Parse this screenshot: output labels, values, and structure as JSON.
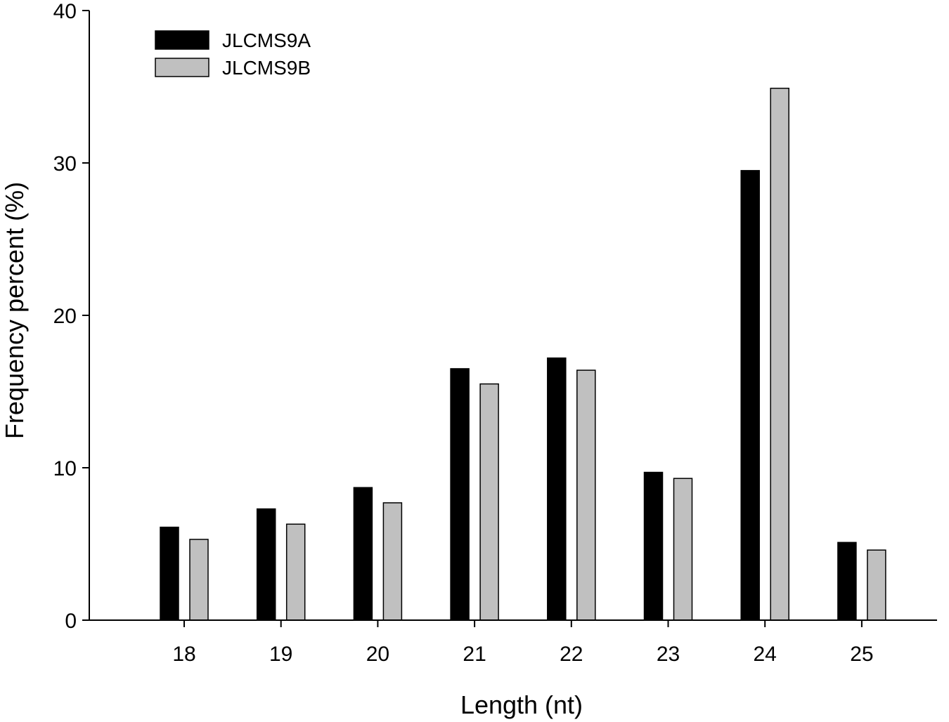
{
  "chart_data": {
    "type": "bar",
    "title": "",
    "xlabel": "Length (nt)",
    "ylabel": "Frequency percent (%)",
    "categories": [
      "18",
      "19",
      "20",
      "21",
      "22",
      "23",
      "24",
      "25"
    ],
    "ylim": [
      0,
      40
    ],
    "yticks": [
      "0",
      "10",
      "20",
      "30",
      "40"
    ],
    "grid": false,
    "legend_position": "top-left",
    "series": [
      {
        "name": "JLCMS9A",
        "color": "#000000",
        "values": [
          6.1,
          7.3,
          8.7,
          16.5,
          17.2,
          9.7,
          29.5,
          5.1
        ]
      },
      {
        "name": "JLCMS9B",
        "color": "#c0c0c0",
        "values": [
          5.3,
          6.3,
          7.7,
          15.5,
          16.4,
          9.3,
          34.9,
          4.6
        ]
      }
    ]
  }
}
